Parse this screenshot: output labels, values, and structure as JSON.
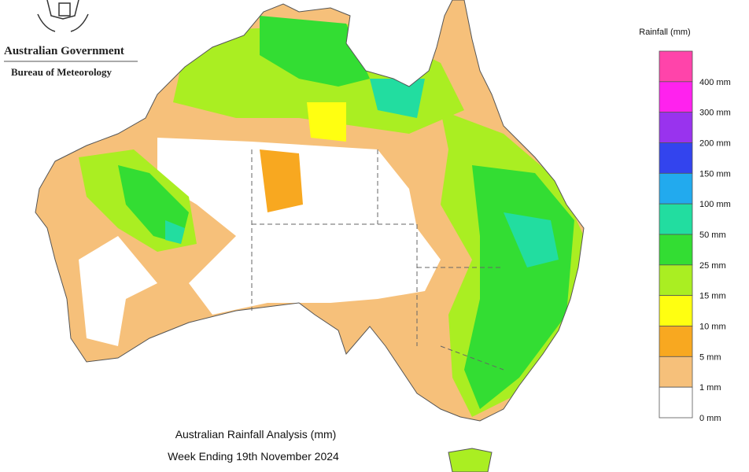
{
  "header": {
    "government": "Australian Government",
    "agency": "Bureau of Meteorology"
  },
  "map": {
    "title": "Australian Rainfall Analysis (mm)",
    "subtitle": "Week Ending 19th November 2024"
  },
  "legend": {
    "title": "Rainfall (mm)",
    "items": [
      {
        "label": "400 mm",
        "color": "#ff44aa"
      },
      {
        "label": "300 mm",
        "color": "#ff22ee"
      },
      {
        "label": "200 mm",
        "color": "#9933ee"
      },
      {
        "label": "150 mm",
        "color": "#3344ee"
      },
      {
        "label": "100 mm",
        "color": "#22aaee"
      },
      {
        "label": "50 mm",
        "color": "#22dda0"
      },
      {
        "label": "25 mm",
        "color": "#33dd33"
      },
      {
        "label": "15 mm",
        "color": "#aaee22"
      },
      {
        "label": "10 mm",
        "color": "#ffff11"
      },
      {
        "label": "5 mm",
        "color": "#f8a820"
      },
      {
        "label": "1 mm",
        "color": "#f6c07a"
      },
      {
        "label": "0 mm",
        "color": "#ffffff"
      }
    ]
  }
}
